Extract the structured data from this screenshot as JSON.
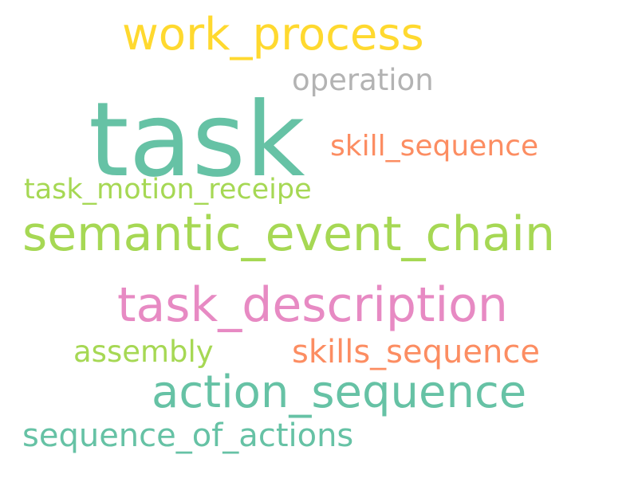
{
  "words": [
    {
      "text": "task",
      "color": "#66c2a5"
    },
    {
      "text": "semantic_event_chain",
      "color": "#a6d854"
    },
    {
      "text": "task_description",
      "color": "#e78ac3"
    },
    {
      "text": "action_sequence",
      "color": "#66c2a5"
    },
    {
      "text": "work_process",
      "color": "#ffd92f"
    },
    {
      "text": "skills_sequence",
      "color": "#fc8d62"
    },
    {
      "text": "skill_sequence",
      "color": "#fc8d62"
    },
    {
      "text": "sequence_of_actions",
      "color": "#66c2a5"
    },
    {
      "text": "task_motion_receipe",
      "color": "#a6d854"
    },
    {
      "text": "assembly",
      "color": "#a6d854"
    },
    {
      "text": "operation",
      "color": "#b3b3b3"
    }
  ]
}
